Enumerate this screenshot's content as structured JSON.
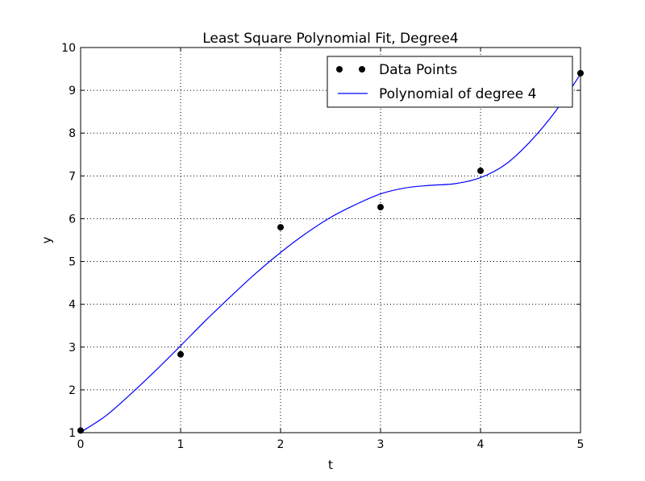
{
  "chart_data": {
    "type": "line",
    "title": "Least Square Polynomial Fit, Degree4",
    "xlabel": "t",
    "ylabel": "y",
    "xlim": [
      0,
      5
    ],
    "ylim": [
      1,
      10
    ],
    "xticks": [
      0,
      1,
      2,
      3,
      4,
      5
    ],
    "yticks": [
      1,
      2,
      3,
      4,
      5,
      6,
      7,
      8,
      9,
      10
    ],
    "xtick_labels": [
      "0",
      "1",
      "2",
      "3",
      "4",
      "5"
    ],
    "ytick_labels": [
      "1",
      "2",
      "3",
      "4",
      "5",
      "6",
      "7",
      "8",
      "9",
      "10"
    ],
    "grid": true,
    "legend_position": "top-right",
    "series": [
      {
        "name": "Data Points",
        "kind": "scatter",
        "color": "#000000",
        "x": [
          0,
          1,
          2,
          3,
          4,
          5
        ],
        "y": [
          1.05,
          2.83,
          5.8,
          6.27,
          7.12,
          9.4
        ]
      },
      {
        "name": "Polynomial of degree 4",
        "kind": "line",
        "color": "#0000ff",
        "x": [
          0,
          0.25,
          0.5,
          0.75,
          1,
          1.25,
          1.5,
          1.75,
          2,
          2.25,
          2.5,
          2.75,
          3,
          3.25,
          3.5,
          3.75,
          4,
          4.25,
          4.5,
          4.75,
          5
        ],
        "y": [
          1.01,
          1.39,
          1.9,
          2.45,
          3.03,
          3.62,
          4.18,
          4.72,
          5.21,
          5.65,
          6.03,
          6.33,
          6.58,
          6.72,
          6.78,
          6.82,
          6.96,
          7.27,
          7.81,
          8.51,
          9.38
        ]
      }
    ]
  }
}
